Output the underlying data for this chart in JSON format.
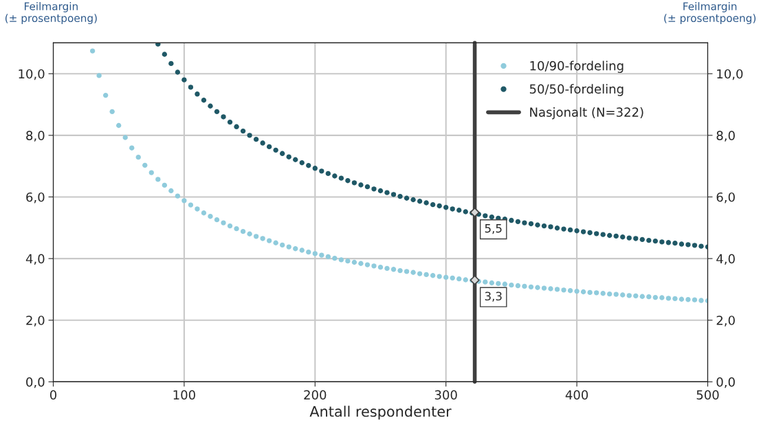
{
  "chart_data": {
    "type": "scatter",
    "xlabel": "Antall respondenter",
    "ylabel": "Feilmargin\n(± prosentpoeng)",
    "y2label": "Feilmargin\n(± prosentpoeng)",
    "xlim": [
      0,
      500
    ],
    "xticks": [
      0,
      100,
      200,
      300,
      400,
      500
    ],
    "ylim": [
      0,
      11
    ],
    "yticks": [
      {
        "value": 0,
        "label": "0,0"
      },
      {
        "value": 2,
        "label": "2,0"
      },
      {
        "value": 4,
        "label": "4,0"
      },
      {
        "value": 6,
        "label": "6,0"
      },
      {
        "value": 8,
        "label": "8,0"
      },
      {
        "value": 10,
        "label": "10,0"
      }
    ],
    "y2lim": [
      0,
      11
    ],
    "y2ticks": [
      {
        "value": 0,
        "label": "0,0"
      },
      {
        "value": 2,
        "label": "2,0"
      },
      {
        "value": 4,
        "label": "4,0"
      },
      {
        "value": 6,
        "label": "6,0"
      },
      {
        "value": 8,
        "label": "8,0"
      },
      {
        "value": 10,
        "label": "10,0"
      }
    ],
    "grid": true,
    "legend": "top right",
    "marker": "circle",
    "series": [
      {
        "name": "10/90-fordeling",
        "color": "#8fcbdc",
        "x": [
          30,
          35,
          40,
          45,
          50,
          55,
          60,
          65,
          70,
          75,
          80,
          85,
          90,
          95,
          100,
          105,
          110,
          115,
          120,
          125,
          130,
          135,
          140,
          145,
          150,
          155,
          160,
          165,
          170,
          175,
          180,
          185,
          190,
          195,
          200,
          205,
          210,
          215,
          220,
          225,
          230,
          235,
          240,
          245,
          250,
          255,
          260,
          265,
          270,
          275,
          280,
          285,
          290,
          295,
          300,
          305,
          310,
          315,
          320,
          325,
          330,
          335,
          340,
          345,
          350,
          355,
          360,
          365,
          370,
          375,
          380,
          385,
          390,
          395,
          400,
          405,
          410,
          415,
          420,
          425,
          430,
          435,
          440,
          445,
          450,
          455,
          460,
          465,
          470,
          475,
          480,
          485,
          490,
          495,
          500
        ],
        "values": [
          10.74,
          9.94,
          9.3,
          8.77,
          8.32,
          7.93,
          7.59,
          7.29,
          7.03,
          6.79,
          6.57,
          6.38,
          6.2,
          6.03,
          5.88,
          5.74,
          5.61,
          5.48,
          5.37,
          5.26,
          5.16,
          5.06,
          4.97,
          4.88,
          4.8,
          4.72,
          4.65,
          4.58,
          4.51,
          4.44,
          4.38,
          4.32,
          4.27,
          4.21,
          4.16,
          4.11,
          4.06,
          4.01,
          3.96,
          3.92,
          3.88,
          3.84,
          3.8,
          3.76,
          3.72,
          3.68,
          3.65,
          3.61,
          3.58,
          3.55,
          3.51,
          3.48,
          3.45,
          3.42,
          3.39,
          3.37,
          3.34,
          3.31,
          3.29,
          3.26,
          3.24,
          3.21,
          3.19,
          3.17,
          3.14,
          3.12,
          3.1,
          3.08,
          3.06,
          3.04,
          3.02,
          3.0,
          2.98,
          2.96,
          2.94,
          2.92,
          2.9,
          2.89,
          2.87,
          2.85,
          2.84,
          2.82,
          2.8,
          2.79,
          2.77,
          2.76,
          2.74,
          2.73,
          2.71,
          2.7,
          2.68,
          2.67,
          2.66,
          2.64,
          2.63
        ]
      },
      {
        "name": "50/50-fordeling",
        "color": "#1f5866",
        "x": [
          80,
          85,
          90,
          95,
          100,
          105,
          110,
          115,
          120,
          125,
          130,
          135,
          140,
          145,
          150,
          155,
          160,
          165,
          170,
          175,
          180,
          185,
          190,
          195,
          200,
          205,
          210,
          215,
          220,
          225,
          230,
          235,
          240,
          245,
          250,
          255,
          260,
          265,
          270,
          275,
          280,
          285,
          290,
          295,
          300,
          305,
          310,
          315,
          320,
          325,
          330,
          335,
          340,
          345,
          350,
          355,
          360,
          365,
          370,
          375,
          380,
          385,
          390,
          395,
          400,
          405,
          410,
          415,
          420,
          425,
          430,
          435,
          440,
          445,
          450,
          455,
          460,
          465,
          470,
          475,
          480,
          485,
          490,
          495,
          500
        ],
        "values": [
          10.96,
          10.63,
          10.33,
          10.05,
          9.8,
          9.56,
          9.34,
          9.14,
          8.95,
          8.77,
          8.6,
          8.43,
          8.28,
          8.14,
          8.0,
          7.87,
          7.75,
          7.63,
          7.52,
          7.41,
          7.3,
          7.21,
          7.11,
          7.02,
          6.93,
          6.84,
          6.76,
          6.68,
          6.61,
          6.53,
          6.46,
          6.39,
          6.33,
          6.26,
          6.2,
          6.14,
          6.08,
          6.02,
          5.96,
          5.91,
          5.86,
          5.81,
          5.75,
          5.71,
          5.66,
          5.61,
          5.57,
          5.52,
          5.48,
          5.44,
          5.39,
          5.35,
          5.31,
          5.28,
          5.24,
          5.2,
          5.16,
          5.13,
          5.09,
          5.06,
          5.03,
          4.99,
          4.96,
          4.93,
          4.9,
          4.87,
          4.84,
          4.81,
          4.78,
          4.75,
          4.73,
          4.7,
          4.67,
          4.65,
          4.62,
          4.59,
          4.57,
          4.54,
          4.52,
          4.5,
          4.47,
          4.45,
          4.43,
          4.4,
          4.38
        ]
      },
      {
        "name": "Nasjonalt (N=322)",
        "type": "line",
        "color": "#404040",
        "marker": "none",
        "line_style": "solid",
        "x": [
          322,
          322
        ],
        "values": [
          0,
          11
        ]
      },
      {
        "color": "#d9d9d9",
        "marker": "diamond",
        "x": [
          322,
          322
        ],
        "values": [
          5.5,
          3.3
        ],
        "value_labels": [
          "5,5",
          "3,3"
        ]
      }
    ]
  }
}
